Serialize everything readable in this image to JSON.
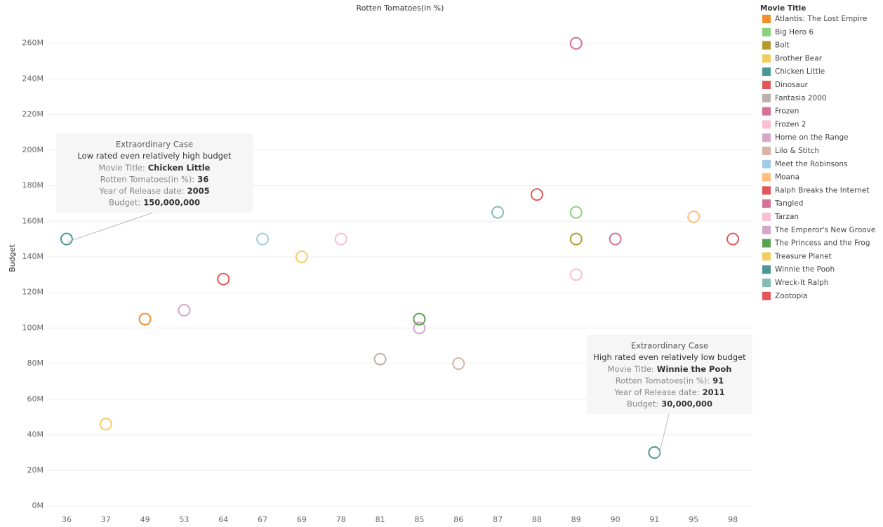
{
  "chart_data": {
    "type": "scatter",
    "title": "Rotten Tomatoes(in %)",
    "y_label": "Budget",
    "legend_title": "Movie Title",
    "categories": [
      36,
      37,
      49,
      53,
      64,
      67,
      69,
      78,
      81,
      85,
      86,
      87,
      88,
      89,
      90,
      91,
      95,
      98
    ],
    "ylim": [
      0,
      280000000
    ],
    "yticks": [
      {
        "value": 0,
        "label": "0M"
      },
      {
        "value": 20000000,
        "label": "20M"
      },
      {
        "value": 40000000,
        "label": "40M"
      },
      {
        "value": 60000000,
        "label": "60M"
      },
      {
        "value": 80000000,
        "label": "80M"
      },
      {
        "value": 100000000,
        "label": "100M"
      },
      {
        "value": 120000000,
        "label": "120M"
      },
      {
        "value": 140000000,
        "label": "140M"
      },
      {
        "value": 160000000,
        "label": "160M"
      },
      {
        "value": 180000000,
        "label": "180M"
      },
      {
        "value": 200000000,
        "label": "200M"
      },
      {
        "value": 220000000,
        "label": "220M"
      },
      {
        "value": 240000000,
        "label": "240M"
      },
      {
        "value": 260000000,
        "label": "260M"
      }
    ],
    "grid": true,
    "series": [
      {
        "name": "Atlantis: The Lost Empire",
        "color": "#f28e2b",
        "x": 49,
        "value": 105000000
      },
      {
        "name": "Big Hero 6",
        "color": "#8cd17d",
        "x": 89,
        "value": 165000000
      },
      {
        "name": "Bolt",
        "color": "#b6992d",
        "x": 89,
        "value": 150000000
      },
      {
        "name": "Brother Bear",
        "color": "#f1ce63",
        "x": 37,
        "value": 46000000
      },
      {
        "name": "Chicken Little",
        "color": "#499894",
        "x": 36,
        "value": 150000000
      },
      {
        "name": "Dinosaur",
        "color": "#e15759",
        "x": 64,
        "value": 127500000
      },
      {
        "name": "Fantasia 2000",
        "color": "#bab0ac",
        "x": 81,
        "value": 82500000
      },
      {
        "name": "Frozen",
        "color": "#d37295",
        "x": 90,
        "value": 150000000
      },
      {
        "name": "Frozen 2",
        "color": "#fabfd2",
        "x": 78,
        "value": 150000000
      },
      {
        "name": "Home on the Range",
        "color": "#d4a6c8",
        "x": 53,
        "value": 110000000
      },
      {
        "name": "Lilo & Stitch",
        "color": "#d7b5a6",
        "x": 86,
        "value": 80000000
      },
      {
        "name": "Meet the Robinsons",
        "color": "#a0cbe8",
        "x": 67,
        "value": 150000000
      },
      {
        "name": "Moana",
        "color": "#ffbe7d",
        "x": 95,
        "value": 162500000
      },
      {
        "name": "Ralph Breaks the Internet",
        "color": "#e15759",
        "x": 88,
        "value": 175000000
      },
      {
        "name": "Tangled",
        "color": "#d37295",
        "x": 89,
        "value": 260000000
      },
      {
        "name": "Tarzan",
        "color": "#fabfd2",
        "x": 89,
        "value": 130000000
      },
      {
        "name": "The Emperor's New Groove",
        "color": "#d4a6c8",
        "x": 85,
        "value": 100000000
      },
      {
        "name": "The Princess and the Frog",
        "color": "#59a14f",
        "x": 85,
        "value": 105000000
      },
      {
        "name": "Treasure Planet",
        "color": "#f1ce63",
        "x": 69,
        "value": 140000000
      },
      {
        "name": "Winnie the Pooh",
        "color": "#499894",
        "x": 91,
        "value": 30000000
      },
      {
        "name": "Wreck-It Ralph",
        "color": "#86bcb6",
        "x": 87,
        "value": 165000000
      },
      {
        "name": "Zootopia",
        "color": "#e15759",
        "x": 98,
        "value": 150000000
      }
    ],
    "annotations": [
      {
        "title": "Extraordinary Case",
        "subtitle": "Low rated even relatively high budget",
        "lines": [
          {
            "label": "Movie Title:",
            "value": "Chicken Little"
          },
          {
            "label": "Rotten Tomatoes(in %):",
            "value": "36"
          },
          {
            "label": "Year of Release date:",
            "value": "2005"
          },
          {
            "label": "Budget:",
            "value": "150,000,000"
          }
        ]
      },
      {
        "title": "Extraordinary Case",
        "subtitle": "High rated even relatively low budget",
        "lines": [
          {
            "label": "Movie Title:",
            "value": "Winnie the Pooh"
          },
          {
            "label": "Rotten Tomatoes(in %):",
            "value": "91"
          },
          {
            "label": "Year of Release date:",
            "value": "2011"
          },
          {
            "label": "Budget:",
            "value": "30,000,000"
          }
        ]
      }
    ]
  }
}
